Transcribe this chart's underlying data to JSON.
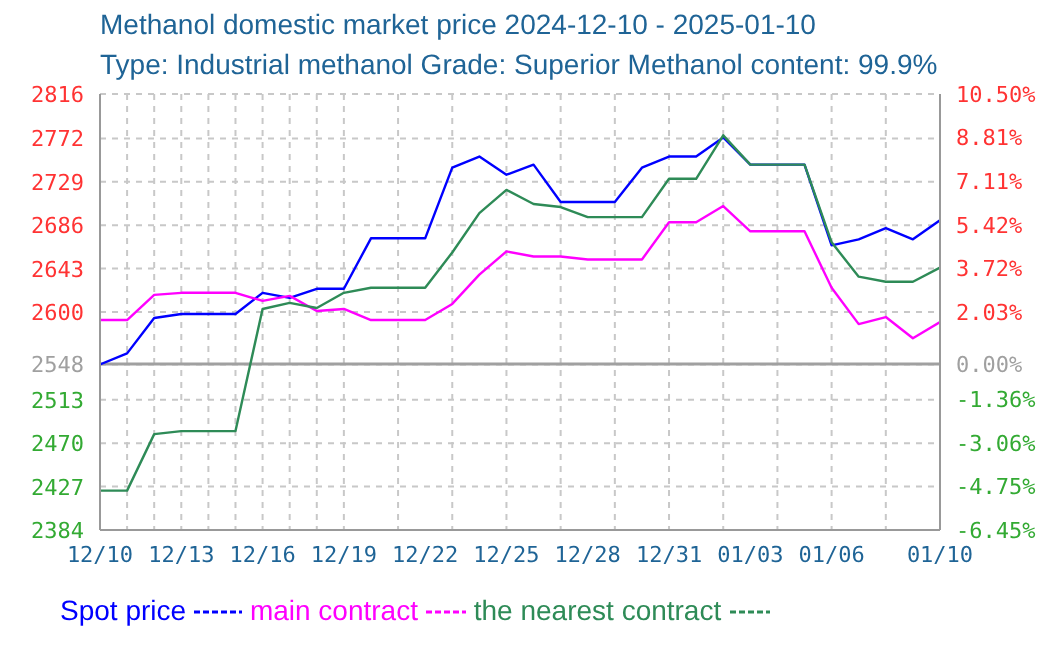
{
  "chart_data": {
    "type": "line",
    "title": "Methanol domestic market price 2024-12-10 - 2025-01-10",
    "subtitle": "Type: Industrial methanol Grade: Superior Methanol content: 99.9%",
    "categories": [
      "12/10",
      null,
      null,
      "12/13",
      null,
      null,
      "12/16",
      null,
      null,
      "12/19",
      null,
      null,
      "12/22",
      null,
      null,
      "12/25",
      null,
      null,
      "12/28",
      null,
      null,
      "12/31",
      null,
      null,
      "01/03",
      null,
      null,
      "01/06",
      null,
      null,
      null,
      "01/10"
    ],
    "series": [
      {
        "name": "Spot price",
        "color": "#0000ff",
        "values": [
          2548,
          2559,
          2594,
          2598,
          2598,
          2598,
          2619,
          2614,
          2623,
          2623,
          2673,
          2673,
          2673,
          2743,
          2754,
          2736,
          2746,
          2709,
          2709,
          2709,
          2743,
          2754,
          2754,
          2773,
          2746,
          2746,
          2746,
          2666,
          2672,
          2683,
          2672,
          2691
        ]
      },
      {
        "name": "main contract",
        "color": "#ff00ff",
        "values": [
          2592,
          2592,
          2617,
          2619,
          2619,
          2619,
          2611,
          2616,
          2601,
          2603,
          2592,
          2592,
          2592,
          2608,
          2637,
          2660,
          2655,
          2655,
          2652,
          2652,
          2652,
          2689,
          2689,
          2705,
          2680,
          2680,
          2680,
          2624,
          2588,
          2595,
          2574,
          2590
        ]
      },
      {
        "name": "the nearest contract",
        "color": "#2e8b57",
        "values": [
          2423,
          2423,
          2479,
          2482,
          2482,
          2482,
          2603,
          2609,
          2604,
          2619,
          2624,
          2624,
          2624,
          2659,
          2698,
          2721,
          2707,
          2704,
          2694,
          2694,
          2694,
          2732,
          2732,
          2775,
          2746,
          2746,
          2746,
          2669,
          2635,
          2630,
          2630,
          2644
        ]
      }
    ],
    "ylim": [
      2384,
      2816
    ],
    "yticks": [
      2384,
      2427,
      2470,
      2513,
      2548,
      2600,
      2643,
      2686,
      2729,
      2772,
      2816
    ],
    "y2lim": [
      -6.45,
      10.5
    ],
    "y2ticks": [
      {
        "value": -6.45,
        "label": "-6.45%"
      },
      {
        "value": -4.75,
        "label": "-4.75%"
      },
      {
        "value": -3.06,
        "label": "-3.06%"
      },
      {
        "value": -1.36,
        "label": "-1.36%"
      },
      {
        "value": 0,
        "label": "0.00%"
      },
      {
        "value": 2.03,
        "label": "2.03%"
      },
      {
        "value": 3.72,
        "label": "3.72%"
      },
      {
        "value": 5.42,
        "label": "5.42%"
      },
      {
        "value": 7.11,
        "label": "7.11%"
      },
      {
        "value": 8.81,
        "label": "8.81%"
      },
      {
        "value": 10.5,
        "label": "10.50%"
      }
    ],
    "ref_lines": [
      {
        "axis": "y2",
        "value": 0,
        "color": "#a0a0a0"
      }
    ],
    "grid": true,
    "legend": "bottom",
    "marker": "none",
    "line_style": "solid"
  }
}
